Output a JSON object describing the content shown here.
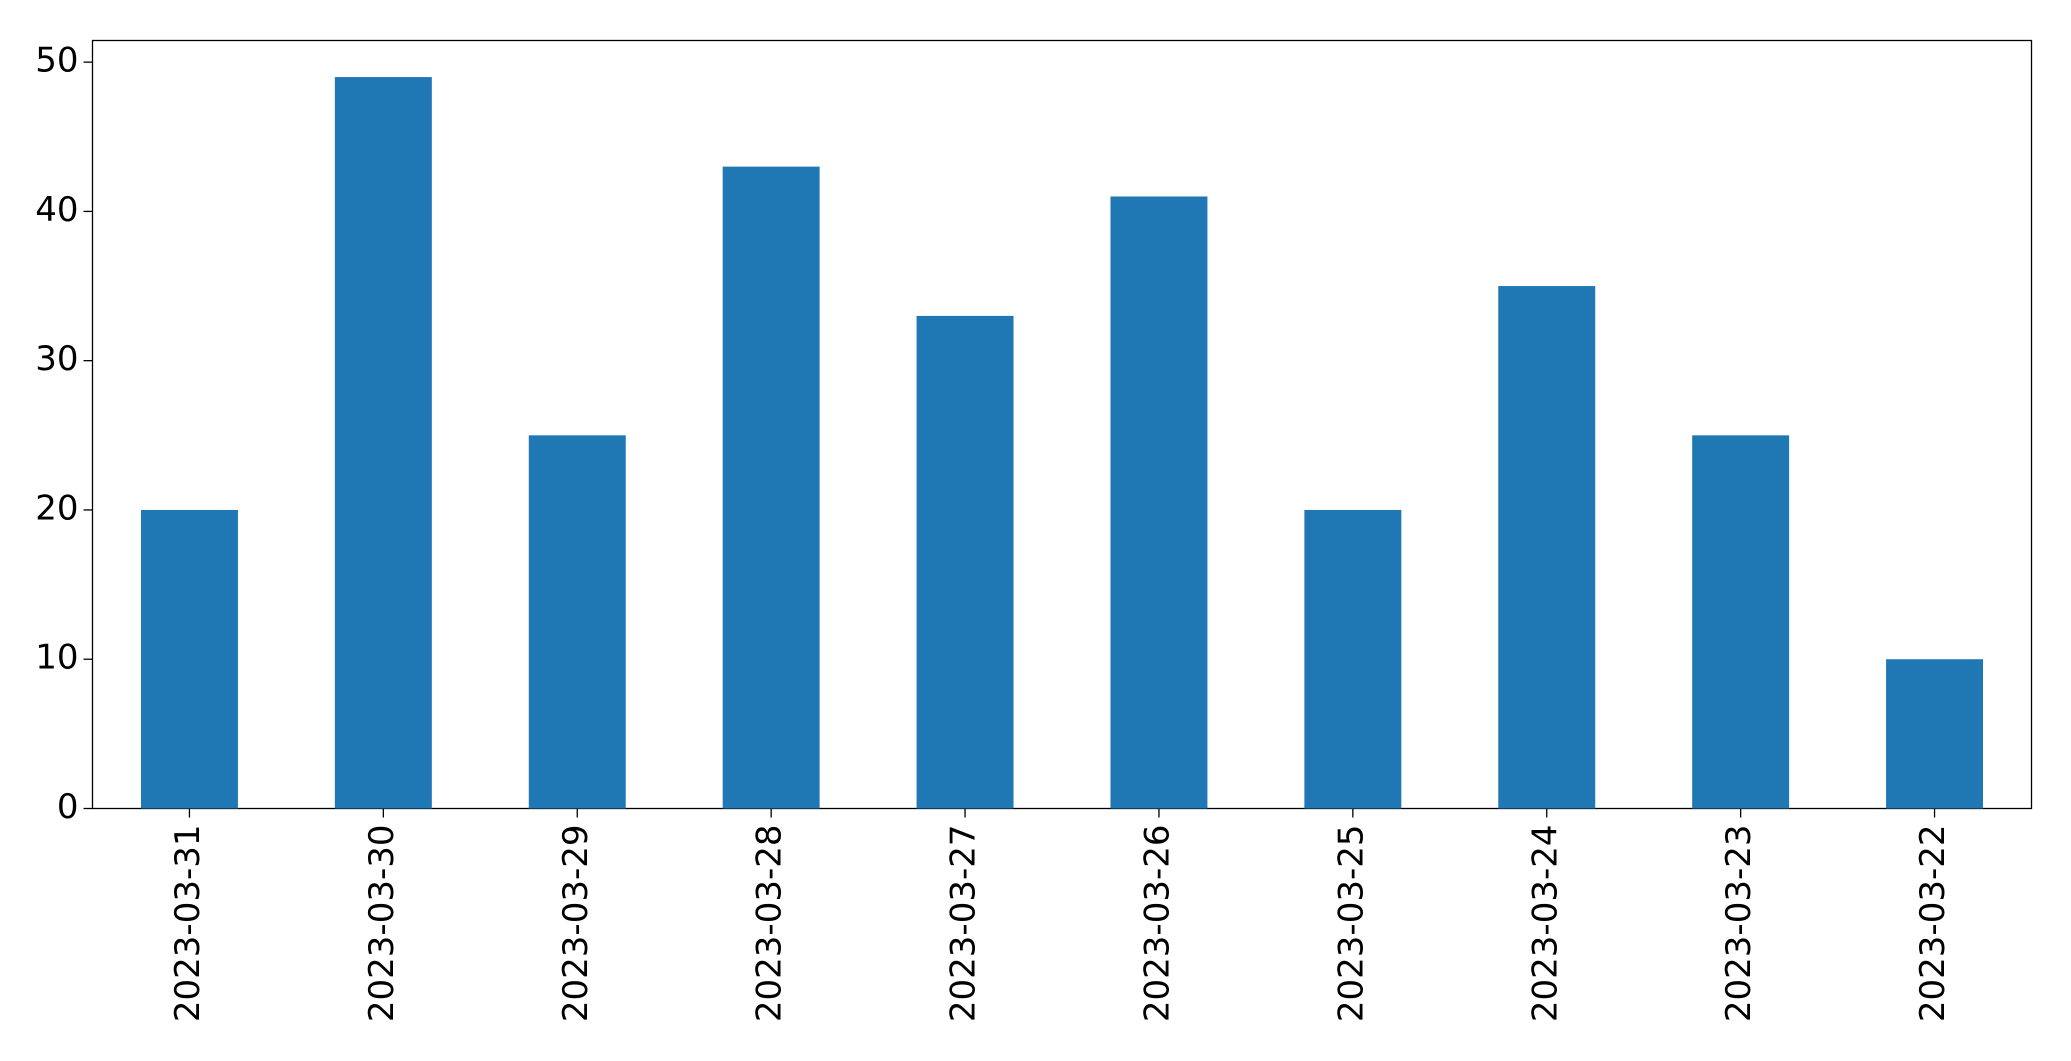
{
  "chart_data": {
    "type": "bar",
    "categories": [
      "2023-03-31",
      "2023-03-30",
      "2023-03-29",
      "2023-03-28",
      "2023-03-27",
      "2023-03-26",
      "2023-03-25",
      "2023-03-24",
      "2023-03-23",
      "2023-03-22"
    ],
    "values": [
      20,
      49,
      25,
      43,
      33,
      41,
      20,
      35,
      25,
      10
    ],
    "color": "#1f77b4",
    "ylim": [
      0,
      51.45
    ],
    "yticks": [
      0,
      10,
      20,
      30,
      40,
      50
    ],
    "grid": false
  }
}
